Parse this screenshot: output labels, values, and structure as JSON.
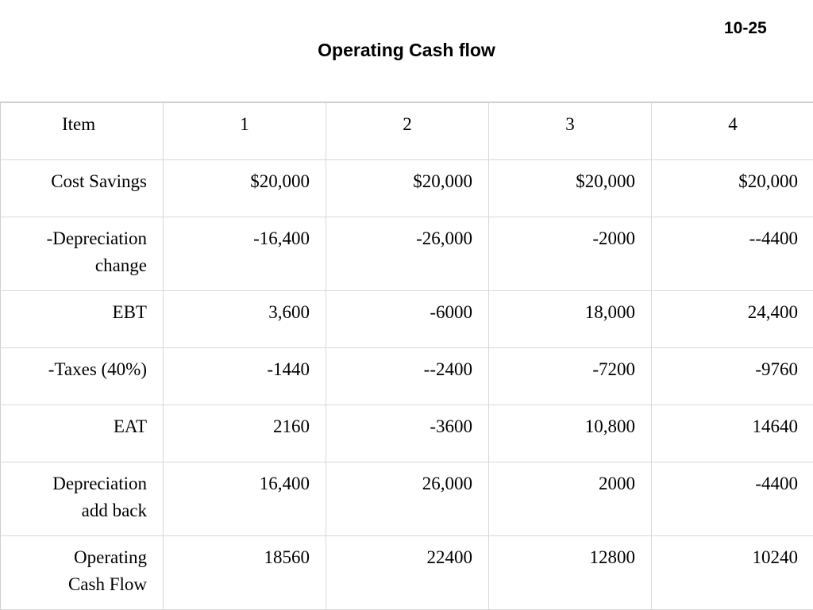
{
  "slide": {
    "number": "10-25",
    "title": "Operating Cash flow"
  },
  "table": {
    "headers": [
      "Item",
      "1",
      "2",
      "3",
      "4"
    ],
    "rows": [
      {
        "item": [
          "Cost Savings"
        ],
        "values": [
          "$20,000",
          "$20,000",
          "$20,000",
          "$20,000"
        ]
      },
      {
        "item": [
          "-Depreciation",
          "change"
        ],
        "values": [
          "-16,400",
          "-26,000",
          "-2000",
          "--4400"
        ]
      },
      {
        "item": [
          "EBT"
        ],
        "values": [
          "3,600",
          "-6000",
          "18,000",
          "24,400"
        ]
      },
      {
        "item": [
          "-Taxes (40%)"
        ],
        "values": [
          "-1440",
          "--2400",
          "-7200",
          "-9760"
        ]
      },
      {
        "item": [
          "EAT"
        ],
        "values": [
          "2160",
          "-3600",
          "10,800",
          "14640"
        ]
      },
      {
        "item": [
          "Depreciation",
          "add back"
        ],
        "values": [
          "16,400",
          "26,000",
          "2000",
          "-4400"
        ]
      },
      {
        "item": [
          "Operating",
          "Cash Flow"
        ],
        "values": [
          "18560",
          "22400",
          "12800",
          "10240"
        ]
      }
    ]
  }
}
